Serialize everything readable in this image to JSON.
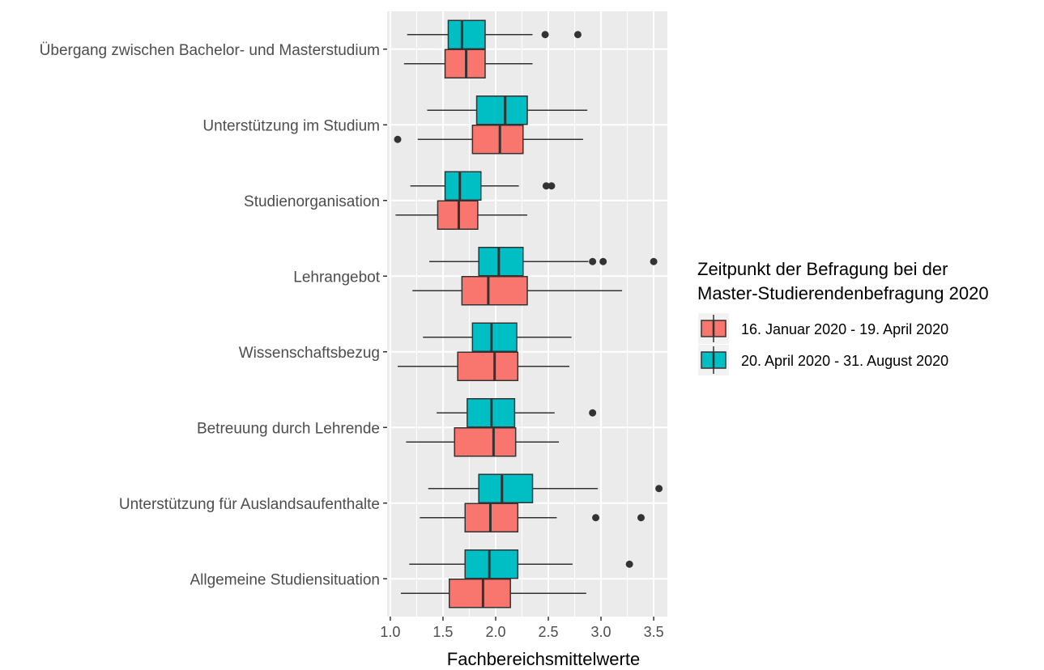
{
  "chart_data": {
    "type": "boxplot",
    "orientation": "horizontal",
    "xlabel": "Fachbereichsmittelwerte",
    "xlim": [
      0.97,
      3.63
    ],
    "xticks": [
      1.0,
      1.5,
      2.0,
      2.5,
      3.0,
      3.5
    ],
    "xtick_labels": [
      "1.0",
      "1.5",
      "2.0",
      "2.5",
      "3.0",
      "3.5"
    ],
    "grid": true,
    "panel_background": "#ebebeb",
    "legend": {
      "title_lines": [
        "Zeitpunkt der Befragung bei der",
        "Master-Studierendenbefragung 2020"
      ],
      "placement": "right"
    },
    "series": [
      {
        "name": "16. Januar 2020 - 19. April 2020",
        "color": "#f8766d"
      },
      {
        "name": "20. April 2020 - 31. August 2020",
        "color": "#00bfc4"
      }
    ],
    "categories": [
      "Übergang zwischen Bachelor- und Masterstudium",
      "Unterstützung im Studium",
      "Studienorganisation",
      "Lehrangebot",
      "Wissenschaftsbezug",
      "Betreuung durch Lehrende",
      "Unterstützung für Auslandsaufenthalte",
      "Allgemeine Studiensituation"
    ],
    "boxes": [
      [
        {
          "whisker_low": 1.13,
          "q1": 1.52,
          "median": 1.72,
          "q3": 1.9,
          "whisker_high": 2.35,
          "outliers": []
        },
        {
          "whisker_low": 1.16,
          "q1": 1.55,
          "median": 1.68,
          "q3": 1.9,
          "whisker_high": 2.35,
          "outliers": [
            2.47,
            2.78
          ]
        }
      ],
      [
        {
          "whisker_low": 1.26,
          "q1": 1.78,
          "median": 2.04,
          "q3": 2.26,
          "whisker_high": 2.83,
          "outliers": [
            1.07
          ]
        },
        {
          "whisker_low": 1.35,
          "q1": 1.82,
          "median": 2.09,
          "q3": 2.3,
          "whisker_high": 2.87,
          "outliers": []
        }
      ],
      [
        {
          "whisker_low": 1.05,
          "q1": 1.45,
          "median": 1.65,
          "q3": 1.83,
          "whisker_high": 2.3,
          "outliers": []
        },
        {
          "whisker_low": 1.19,
          "q1": 1.52,
          "median": 1.66,
          "q3": 1.86,
          "whisker_high": 2.22,
          "outliers": [
            2.48,
            2.53
          ]
        }
      ],
      [
        {
          "whisker_low": 1.21,
          "q1": 1.68,
          "median": 1.93,
          "q3": 2.3,
          "whisker_high": 3.2,
          "outliers": []
        },
        {
          "whisker_low": 1.37,
          "q1": 1.84,
          "median": 2.03,
          "q3": 2.26,
          "whisker_high": 2.88,
          "outliers": [
            2.92,
            3.02,
            3.5
          ]
        }
      ],
      [
        {
          "whisker_low": 1.07,
          "q1": 1.64,
          "median": 1.99,
          "q3": 2.21,
          "whisker_high": 2.7,
          "outliers": []
        },
        {
          "whisker_low": 1.31,
          "q1": 1.78,
          "median": 1.96,
          "q3": 2.2,
          "whisker_high": 2.72,
          "outliers": []
        }
      ],
      [
        {
          "whisker_low": 1.15,
          "q1": 1.61,
          "median": 1.98,
          "q3": 2.19,
          "whisker_high": 2.6,
          "outliers": []
        },
        {
          "whisker_low": 1.44,
          "q1": 1.73,
          "median": 1.96,
          "q3": 2.18,
          "whisker_high": 2.56,
          "outliers": [
            2.92
          ]
        }
      ],
      [
        {
          "whisker_low": 1.28,
          "q1": 1.71,
          "median": 1.95,
          "q3": 2.21,
          "whisker_high": 2.58,
          "outliers": [
            2.95,
            3.38
          ]
        },
        {
          "whisker_low": 1.36,
          "q1": 1.84,
          "median": 2.06,
          "q3": 2.35,
          "whisker_high": 2.97,
          "outliers": [
            3.55
          ]
        }
      ],
      [
        {
          "whisker_low": 1.1,
          "q1": 1.56,
          "median": 1.88,
          "q3": 2.14,
          "whisker_high": 2.86,
          "outliers": []
        },
        {
          "whisker_low": 1.18,
          "q1": 1.71,
          "median": 1.94,
          "q3": 2.21,
          "whisker_high": 2.73,
          "outliers": [
            3.27
          ]
        }
      ]
    ]
  }
}
